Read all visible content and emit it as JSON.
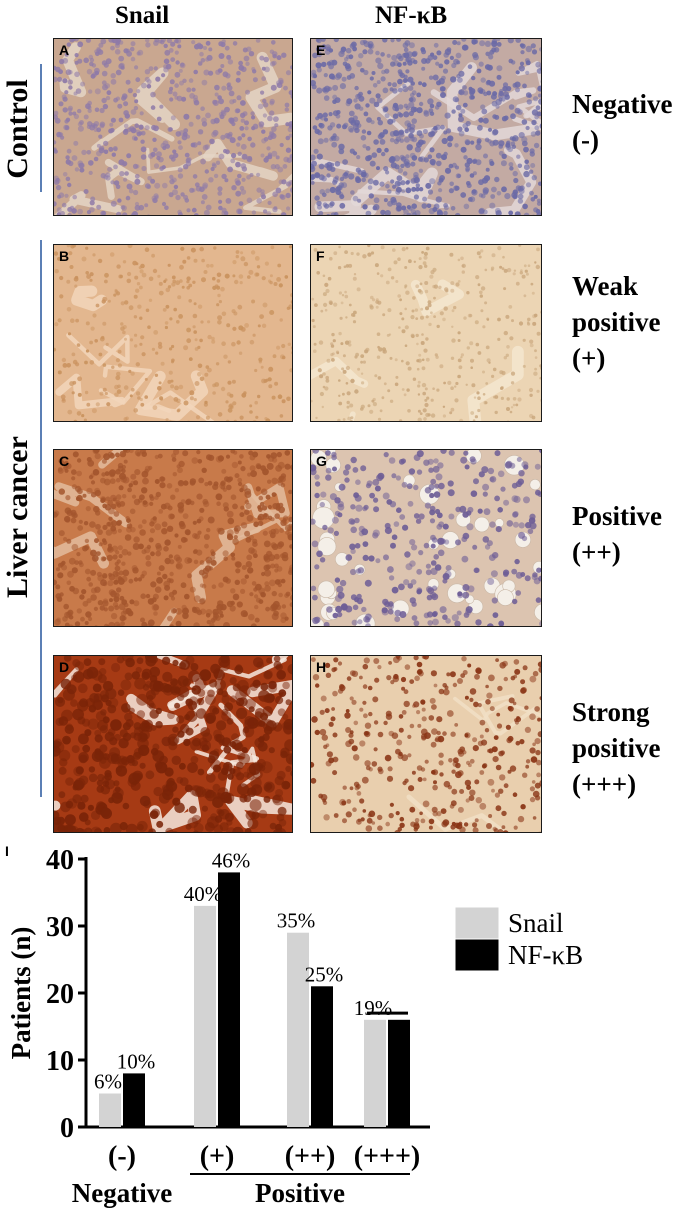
{
  "columns": {
    "snail": "Snail",
    "nfkb": "NF-κB"
  },
  "rows": {
    "control": "Control",
    "cancer": "Liver  cancer"
  },
  "panels": [
    {
      "id": "A",
      "tone": "neg_snail"
    },
    {
      "id": "B",
      "tone": "weak_snail"
    },
    {
      "id": "C",
      "tone": "pos_snail"
    },
    {
      "id": "D",
      "tone": "strong_snail"
    },
    {
      "id": "E",
      "tone": "neg_nfkb"
    },
    {
      "id": "F",
      "tone": "weak_nfkb"
    },
    {
      "id": "G",
      "tone": "pos_nfkb"
    },
    {
      "id": "H",
      "tone": "strong_nfkb"
    }
  ],
  "grades": [
    {
      "lines": [
        "Negative",
        "(-)"
      ]
    },
    {
      "lines": [
        "Weak",
        "positive",
        "(+)"
      ]
    },
    {
      "lines": [
        "Positive",
        "(++)"
      ]
    },
    {
      "lines": [
        "Strong",
        "positive",
        "(+++)"
      ]
    }
  ],
  "chart_data": {
    "type": "bar",
    "panel_label": "I",
    "categories": [
      "(-)",
      "(+)",
      "(++)",
      "(+++)"
    ],
    "series": [
      {
        "name": "Snail",
        "color": "#d3d3d3",
        "values": [
          5,
          33,
          29,
          16
        ],
        "labels": [
          "6%",
          "40%",
          "35%",
          "19%"
        ]
      },
      {
        "name": "NF-κB",
        "color": "#000000",
        "values": [
          8,
          38,
          21,
          16
        ],
        "labels": [
          "10%",
          "46%",
          "25%",
          ""
        ]
      }
    ],
    "ylabel": "Patients (n)",
    "ylim": [
      0,
      40
    ],
    "yticks": [
      0,
      10,
      20,
      30,
      40
    ],
    "groups": [
      {
        "label": "Negative",
        "categories": [
          "(-)"
        ]
      },
      {
        "label": "Positive",
        "categories": [
          "(+)",
          "(++)",
          "(+++)"
        ]
      }
    ],
    "legend": "top-right",
    "grid": false
  }
}
